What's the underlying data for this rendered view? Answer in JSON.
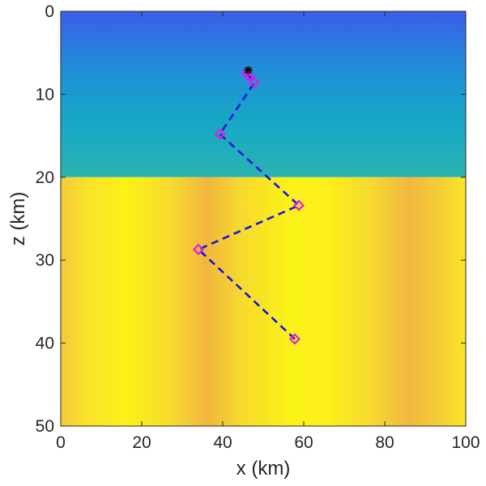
{
  "chart_data": {
    "type": "scatter",
    "title": "",
    "xlabel": "x (km)",
    "ylabel": "z (km)",
    "xlim": [
      0,
      100
    ],
    "ylim": [
      0,
      50
    ],
    "y_axis_direction": "reversed",
    "xticks": [
      0,
      20,
      40,
      60,
      80,
      100
    ],
    "yticks": [
      0,
      10,
      20,
      30,
      40,
      50
    ],
    "grid": false,
    "background_field": {
      "type": "heatmap",
      "colormap": "parula",
      "upper_layer_z_range": [
        0,
        20
      ],
      "lower_layer_z_range": [
        20,
        50
      ],
      "upper_layer_lateral_dark_centers_x": [
        40,
        90
      ],
      "lower_layer_lateral_dark_bands_x": [
        36,
        86
      ]
    },
    "path": {
      "style": "dashed",
      "color": "#1414e6",
      "marker": "diamond",
      "marker_color": "#e619e6",
      "points": [
        {
          "x": 57.8,
          "z": 39.5
        },
        {
          "x": 34.0,
          "z": 28.7
        },
        {
          "x": 58.8,
          "z": 23.4
        },
        {
          "x": 39.3,
          "z": 14.8
        },
        {
          "x": 47.8,
          "z": 8.6
        },
        {
          "x": 46.5,
          "z": 7.8
        },
        {
          "x": 45.9,
          "z": 7.4
        }
      ],
      "end_marker": {
        "x": 46.3,
        "z": 7.1,
        "symbol": "star",
        "color": "#000000"
      }
    }
  }
}
